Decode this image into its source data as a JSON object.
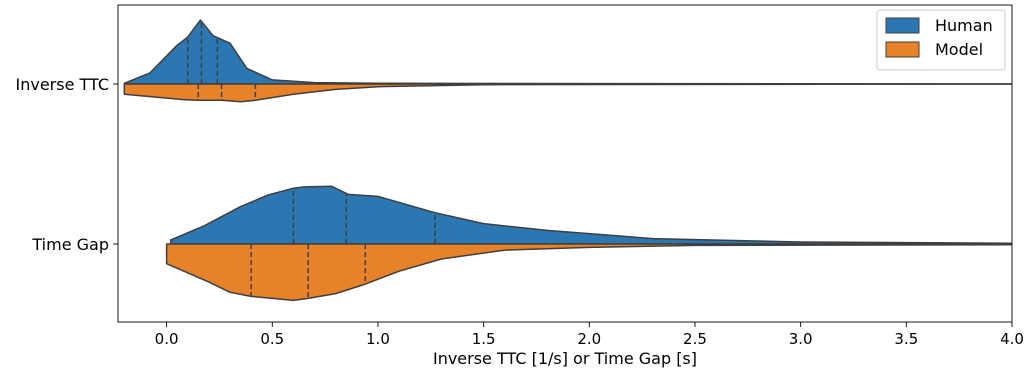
{
  "chart_data": {
    "type": "violin",
    "orientation": "horizontal",
    "split": true,
    "title": "",
    "xlabel": "Inverse TTC [1/s] or Time Gap [s]",
    "ylabel": "",
    "xlim": [
      -0.23,
      4.0
    ],
    "xticks": [
      0.0,
      0.5,
      1.0,
      1.5,
      2.0,
      2.5,
      3.0,
      3.5,
      4.0
    ],
    "xtick_labels": [
      "0.0",
      "0.5",
      "1.0",
      "1.5",
      "2.0",
      "2.5",
      "3.0",
      "3.5",
      "4.0"
    ],
    "categories": [
      "Inverse TTC",
      "Time Gap"
    ],
    "legend": {
      "placement": "top-right",
      "entries": [
        {
          "name": "Human",
          "color": "#2b77b1"
        },
        {
          "name": "Model",
          "color": "#e7812a"
        }
      ]
    },
    "series": [
      {
        "name": "Human",
        "color": "#2b77b1",
        "side": "upper",
        "violins": [
          {
            "category": "Inverse TTC",
            "density": [
              [
                -0.2,
                0.01
              ],
              [
                -0.08,
                0.16
              ],
              [
                0.05,
                0.57
              ],
              [
                0.1,
                0.69
              ],
              [
                0.16,
                0.94
              ],
              [
                0.22,
                0.71
              ],
              [
                0.3,
                0.6
              ],
              [
                0.38,
                0.23
              ],
              [
                0.5,
                0.06
              ],
              [
                0.7,
                0.02
              ],
              [
                1.0,
                0.01
              ],
              [
                4.0,
                0.0
              ]
            ],
            "quartiles": [
              0.1,
              0.165,
              0.24
            ]
          },
          {
            "category": "Time Gap",
            "density": [
              [
                0.02,
                0.06
              ],
              [
                0.18,
                0.27
              ],
              [
                0.35,
                0.55
              ],
              [
                0.48,
                0.72
              ],
              [
                0.6,
                0.82
              ],
              [
                0.65,
                0.84
              ],
              [
                0.78,
                0.85
              ],
              [
                0.86,
                0.73
              ],
              [
                1.0,
                0.7
              ],
              [
                1.27,
                0.46
              ],
              [
                1.5,
                0.3
              ],
              [
                1.8,
                0.2
              ],
              [
                2.3,
                0.08
              ],
              [
                3.0,
                0.03
              ],
              [
                4.0,
                0.01
              ]
            ],
            "quartiles": [
              0.6,
              0.85,
              1.27
            ]
          }
        ]
      },
      {
        "name": "Model",
        "color": "#e7812a",
        "side": "lower",
        "violins": [
          {
            "category": "Inverse TTC",
            "density": [
              [
                -0.2,
                0.15
              ],
              [
                0.08,
                0.23
              ],
              [
                0.15,
                0.24
              ],
              [
                0.26,
                0.24
              ],
              [
                0.35,
                0.26
              ],
              [
                0.42,
                0.24
              ],
              [
                0.6,
                0.15
              ],
              [
                0.8,
                0.08
              ],
              [
                1.0,
                0.04
              ],
              [
                1.5,
                0.01
              ],
              [
                4.0,
                0.0
              ]
            ],
            "quartiles": [
              0.15,
              0.26,
              0.42
            ]
          },
          {
            "category": "Time Gap",
            "density": [
              [
                0.0,
                0.29
              ],
              [
                0.2,
                0.56
              ],
              [
                0.3,
                0.71
              ],
              [
                0.4,
                0.77
              ],
              [
                0.6,
                0.83
              ],
              [
                0.67,
                0.8
              ],
              [
                0.8,
                0.73
              ],
              [
                0.94,
                0.59
              ],
              [
                1.1,
                0.4
              ],
              [
                1.3,
                0.22
              ],
              [
                1.6,
                0.09
              ],
              [
                2.0,
                0.05
              ],
              [
                2.5,
                0.02
              ],
              [
                4.0,
                0.01
              ]
            ],
            "quartiles": [
              0.4,
              0.67,
              0.94
            ]
          }
        ]
      }
    ]
  }
}
